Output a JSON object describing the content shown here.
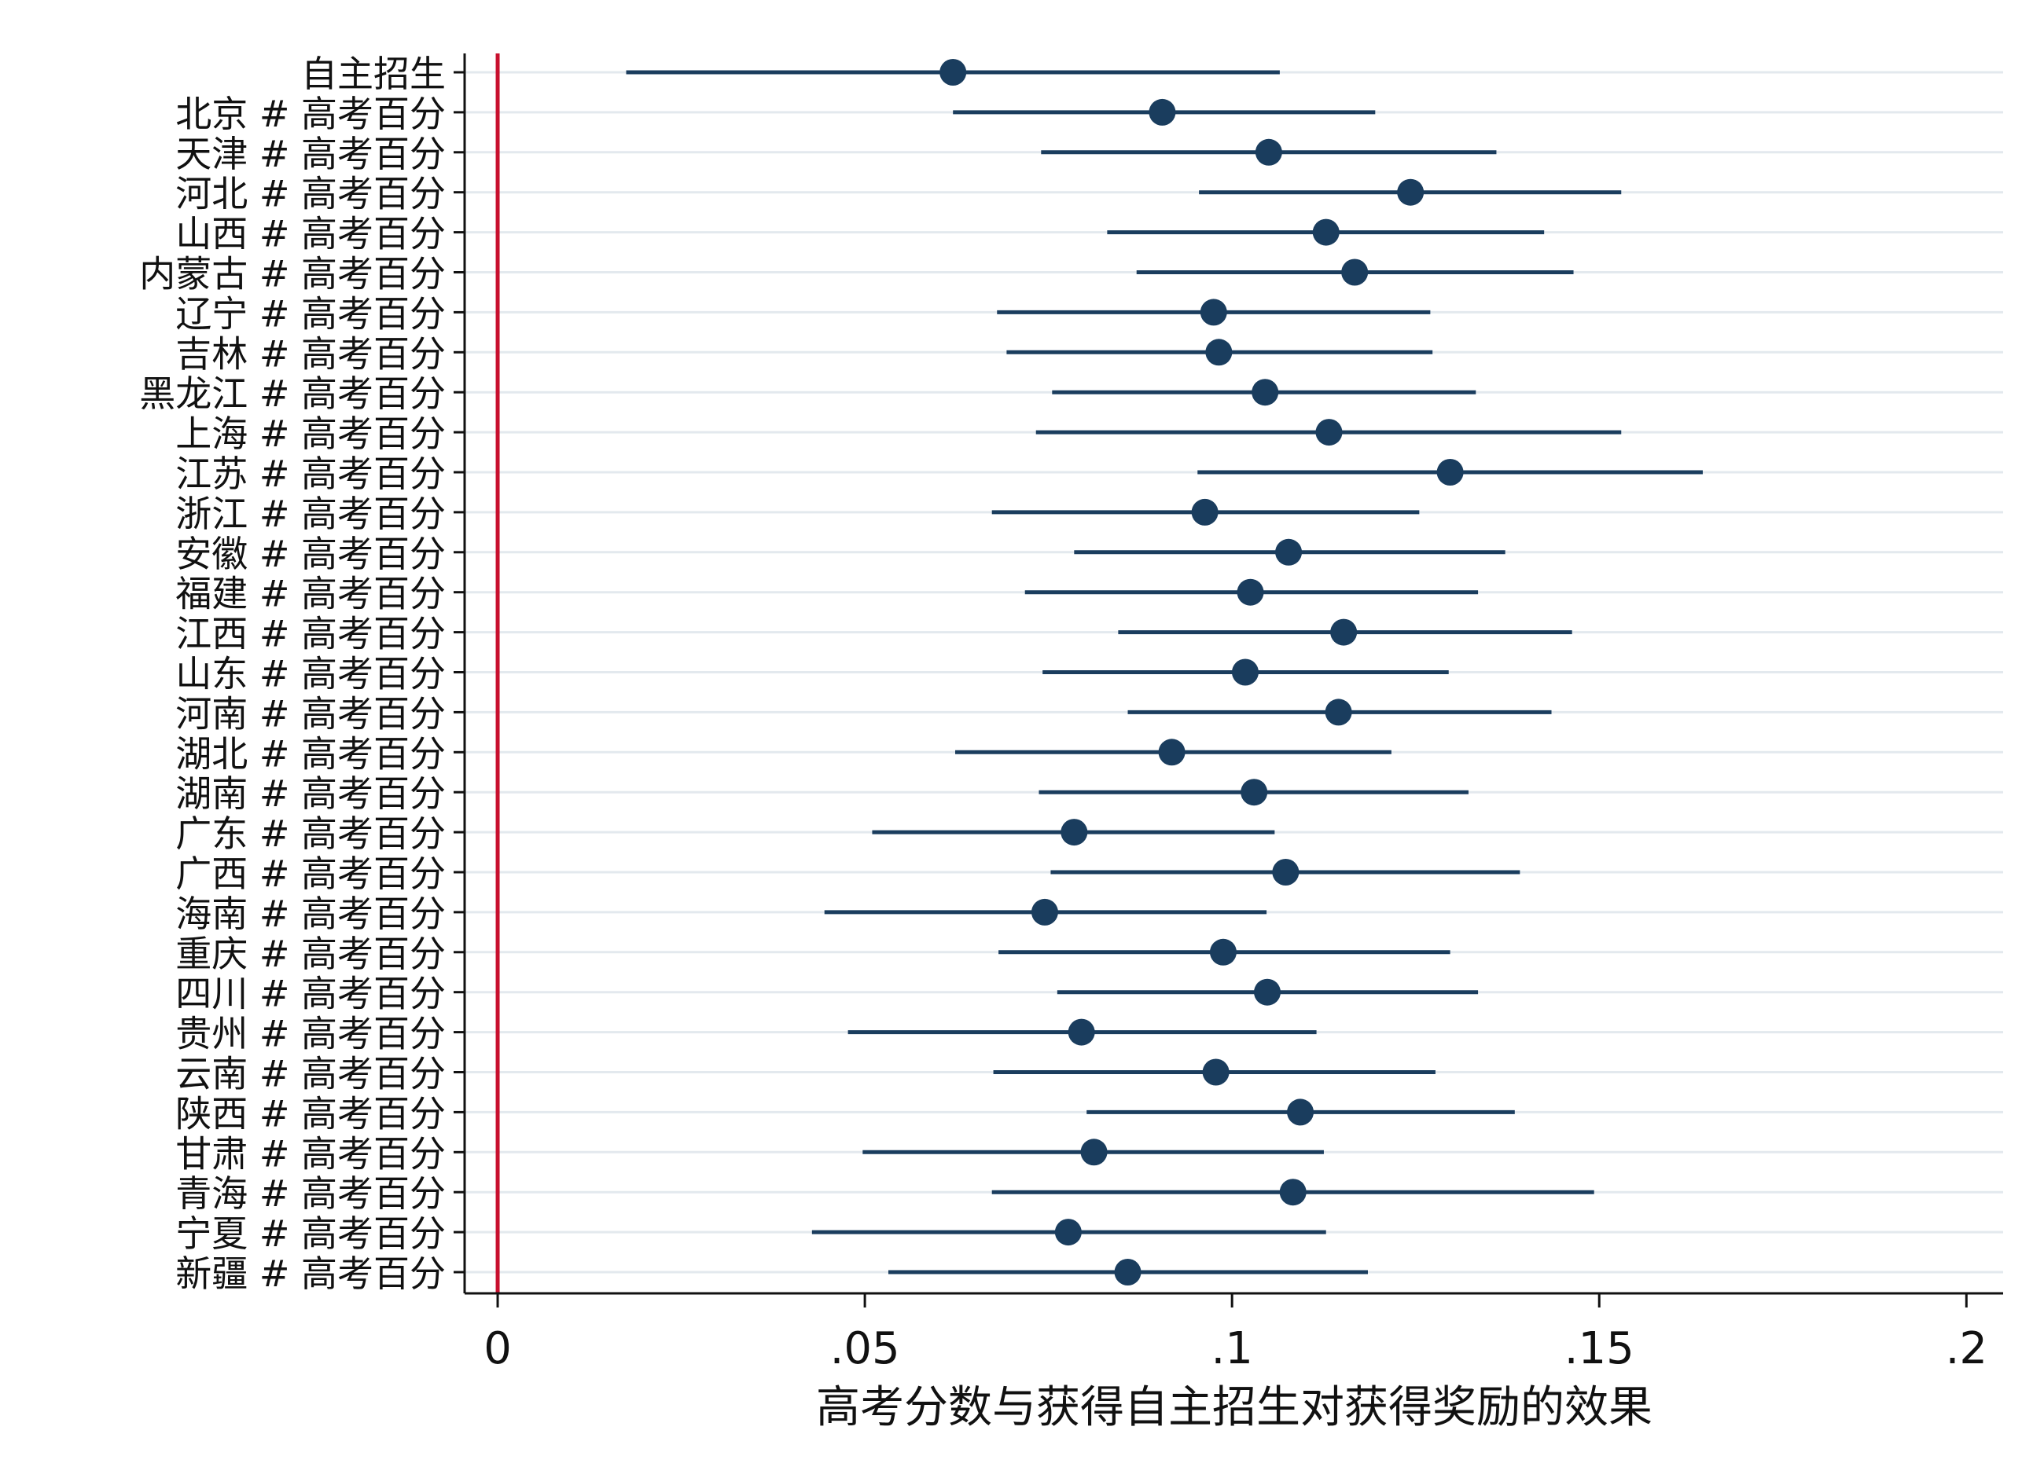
{
  "chart_data": {
    "type": "scatter",
    "subtype": "coefficient-plot",
    "title": "",
    "xlabel": "高考分数与获得自主招生对获得奖励的效果",
    "ylabel": "",
    "xlim": [
      -0.0045,
      0.205
    ],
    "xticks": [
      0,
      0.05,
      0.1,
      0.15,
      0.2
    ],
    "xtick_labels": [
      "0",
      ".05",
      ".1",
      ".15",
      ".2"
    ],
    "reference_line": {
      "x": 0,
      "color": "#c8102e"
    },
    "grid": "horizontal",
    "marker_color": "#1a3d5e",
    "grid_color": "#e3e9ee",
    "legend": "none",
    "rows": [
      {
        "label": "自主招生",
        "est": 0.062,
        "lo": 0.0175,
        "hi": 0.1065
      },
      {
        "label": "北京 # 高考百分",
        "est": 0.0905,
        "lo": 0.062,
        "hi": 0.1195
      },
      {
        "label": "天津 # 高考百分",
        "est": 0.105,
        "lo": 0.074,
        "hi": 0.136
      },
      {
        "label": "河北 # 高考百分",
        "est": 0.1243,
        "lo": 0.0955,
        "hi": 0.153
      },
      {
        "label": "山西 # 高考百分",
        "est": 0.1128,
        "lo": 0.083,
        "hi": 0.1425
      },
      {
        "label": "内蒙古 # 高考百分",
        "est": 0.1167,
        "lo": 0.087,
        "hi": 0.1465
      },
      {
        "label": "辽宁 # 高考百分",
        "est": 0.0975,
        "lo": 0.068,
        "hi": 0.127
      },
      {
        "label": "吉林 # 高考百分",
        "est": 0.0982,
        "lo": 0.0693,
        "hi": 0.1273
      },
      {
        "label": "黑龙江 # 高考百分",
        "est": 0.1045,
        "lo": 0.0755,
        "hi": 0.1332
      },
      {
        "label": "上海 # 高考百分",
        "est": 0.1132,
        "lo": 0.0733,
        "hi": 0.153
      },
      {
        "label": "江苏 # 高考百分",
        "est": 0.1297,
        "lo": 0.0953,
        "hi": 0.1641
      },
      {
        "label": "浙江 # 高考百分",
        "est": 0.0963,
        "lo": 0.0673,
        "hi": 0.1255
      },
      {
        "label": "安徽 # 高考百分",
        "est": 0.1077,
        "lo": 0.0785,
        "hi": 0.1372
      },
      {
        "label": "福建 # 高考百分",
        "est": 0.1025,
        "lo": 0.0718,
        "hi": 0.1335
      },
      {
        "label": "江西 # 高考百分",
        "est": 0.1152,
        "lo": 0.0845,
        "hi": 0.1463
      },
      {
        "label": "山东 # 高考百分",
        "est": 0.1018,
        "lo": 0.0742,
        "hi": 0.1295
      },
      {
        "label": "河南 # 高考百分",
        "est": 0.1145,
        "lo": 0.0858,
        "hi": 0.1435
      },
      {
        "label": "湖北 # 高考百分",
        "est": 0.0918,
        "lo": 0.0623,
        "hi": 0.1217
      },
      {
        "label": "湖南 # 高考百分",
        "est": 0.103,
        "lo": 0.0737,
        "hi": 0.1322
      },
      {
        "label": "广东 # 高考百分",
        "est": 0.0785,
        "lo": 0.051,
        "hi": 0.1058
      },
      {
        "label": "广西 # 高考百分",
        "est": 0.1073,
        "lo": 0.0753,
        "hi": 0.1392
      },
      {
        "label": "海南 # 高考百分",
        "est": 0.0745,
        "lo": 0.0445,
        "hi": 0.1047
      },
      {
        "label": "重庆 # 高考百分",
        "est": 0.0988,
        "lo": 0.0682,
        "hi": 0.1297
      },
      {
        "label": "四川 # 高考百分",
        "est": 0.1048,
        "lo": 0.0762,
        "hi": 0.1335
      },
      {
        "label": "贵州 # 高考百分",
        "est": 0.0795,
        "lo": 0.0477,
        "hi": 0.1115
      },
      {
        "label": "云南 # 高考百分",
        "est": 0.0978,
        "lo": 0.0675,
        "hi": 0.1277
      },
      {
        "label": "陕西 # 高考百分",
        "est": 0.1093,
        "lo": 0.0802,
        "hi": 0.1385
      },
      {
        "label": "甘肃 # 高考百分",
        "est": 0.0812,
        "lo": 0.0497,
        "hi": 0.1125
      },
      {
        "label": "青海 # 高考百分",
        "est": 0.1083,
        "lo": 0.0673,
        "hi": 0.1493
      },
      {
        "label": "宁夏 # 高考百分",
        "est": 0.0777,
        "lo": 0.0428,
        "hi": 0.1128
      },
      {
        "label": "新疆 # 高考百分",
        "est": 0.0858,
        "lo": 0.0532,
        "hi": 0.1185
      }
    ]
  }
}
